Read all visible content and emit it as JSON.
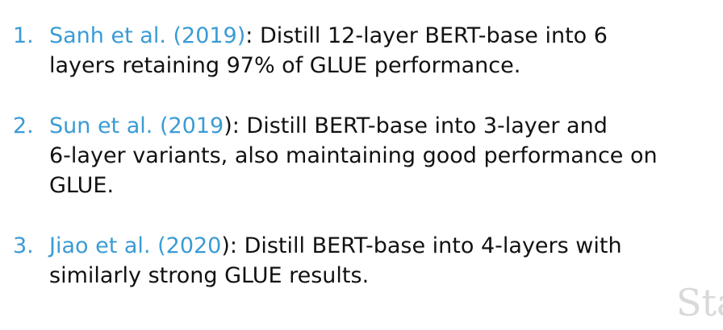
{
  "items": [
    {
      "number": "1.",
      "citation": "Sanh et al. (2019)",
      "line1": ": Distill 12-layer BERT-base into 6",
      "line2": "layers retaining 97% of GLUE performance.",
      "line3": ""
    },
    {
      "number": "2.",
      "citation": "Sun et al. (2019",
      "line1": "): Distill BERT-base into 3-layer and",
      "line2": "6-layer variants, also maintaining good performance on",
      "line3": "GLUE."
    },
    {
      "number": "3.",
      "citation": "Jiao et al. (2020",
      "line1": "): Distill BERT-base into 4-layers with",
      "line2": "similarly strong GLUE results.",
      "line3": ""
    }
  ],
  "watermark": "Sta"
}
